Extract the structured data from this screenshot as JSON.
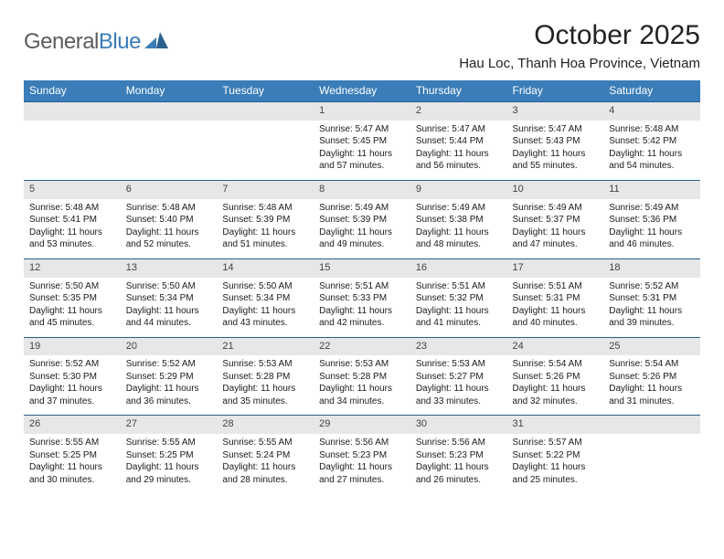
{
  "brand": {
    "word1": "General",
    "word2": "Blue"
  },
  "title": "October 2025",
  "location": "Hau Loc, Thanh Hoa Province, Vietnam",
  "colors": {
    "header_bg": "#3a7db8",
    "header_fg": "#ffffff",
    "daynum_bg": "#e7e7e7",
    "week_border": "#2b5f8e",
    "text": "#1a1a1a",
    "logo_gray": "#5c5c5c",
    "logo_blue": "#3a7db8"
  },
  "daysOfWeek": [
    "Sunday",
    "Monday",
    "Tuesday",
    "Wednesday",
    "Thursday",
    "Friday",
    "Saturday"
  ],
  "firstWeekday": 3,
  "daysInMonth": 31,
  "days": {
    "1": {
      "sunrise": "5:47 AM",
      "sunset": "5:45 PM",
      "daylight": "11 hours and 57 minutes."
    },
    "2": {
      "sunrise": "5:47 AM",
      "sunset": "5:44 PM",
      "daylight": "11 hours and 56 minutes."
    },
    "3": {
      "sunrise": "5:47 AM",
      "sunset": "5:43 PM",
      "daylight": "11 hours and 55 minutes."
    },
    "4": {
      "sunrise": "5:48 AM",
      "sunset": "5:42 PM",
      "daylight": "11 hours and 54 minutes."
    },
    "5": {
      "sunrise": "5:48 AM",
      "sunset": "5:41 PM",
      "daylight": "11 hours and 53 minutes."
    },
    "6": {
      "sunrise": "5:48 AM",
      "sunset": "5:40 PM",
      "daylight": "11 hours and 52 minutes."
    },
    "7": {
      "sunrise": "5:48 AM",
      "sunset": "5:39 PM",
      "daylight": "11 hours and 51 minutes."
    },
    "8": {
      "sunrise": "5:49 AM",
      "sunset": "5:39 PM",
      "daylight": "11 hours and 49 minutes."
    },
    "9": {
      "sunrise": "5:49 AM",
      "sunset": "5:38 PM",
      "daylight": "11 hours and 48 minutes."
    },
    "10": {
      "sunrise": "5:49 AM",
      "sunset": "5:37 PM",
      "daylight": "11 hours and 47 minutes."
    },
    "11": {
      "sunrise": "5:49 AM",
      "sunset": "5:36 PM",
      "daylight": "11 hours and 46 minutes."
    },
    "12": {
      "sunrise": "5:50 AM",
      "sunset": "5:35 PM",
      "daylight": "11 hours and 45 minutes."
    },
    "13": {
      "sunrise": "5:50 AM",
      "sunset": "5:34 PM",
      "daylight": "11 hours and 44 minutes."
    },
    "14": {
      "sunrise": "5:50 AM",
      "sunset": "5:34 PM",
      "daylight": "11 hours and 43 minutes."
    },
    "15": {
      "sunrise": "5:51 AM",
      "sunset": "5:33 PM",
      "daylight": "11 hours and 42 minutes."
    },
    "16": {
      "sunrise": "5:51 AM",
      "sunset": "5:32 PM",
      "daylight": "11 hours and 41 minutes."
    },
    "17": {
      "sunrise": "5:51 AM",
      "sunset": "5:31 PM",
      "daylight": "11 hours and 40 minutes."
    },
    "18": {
      "sunrise": "5:52 AM",
      "sunset": "5:31 PM",
      "daylight": "11 hours and 39 minutes."
    },
    "19": {
      "sunrise": "5:52 AM",
      "sunset": "5:30 PM",
      "daylight": "11 hours and 37 minutes."
    },
    "20": {
      "sunrise": "5:52 AM",
      "sunset": "5:29 PM",
      "daylight": "11 hours and 36 minutes."
    },
    "21": {
      "sunrise": "5:53 AM",
      "sunset": "5:28 PM",
      "daylight": "11 hours and 35 minutes."
    },
    "22": {
      "sunrise": "5:53 AM",
      "sunset": "5:28 PM",
      "daylight": "11 hours and 34 minutes."
    },
    "23": {
      "sunrise": "5:53 AM",
      "sunset": "5:27 PM",
      "daylight": "11 hours and 33 minutes."
    },
    "24": {
      "sunrise": "5:54 AM",
      "sunset": "5:26 PM",
      "daylight": "11 hours and 32 minutes."
    },
    "25": {
      "sunrise": "5:54 AM",
      "sunset": "5:26 PM",
      "daylight": "11 hours and 31 minutes."
    },
    "26": {
      "sunrise": "5:55 AM",
      "sunset": "5:25 PM",
      "daylight": "11 hours and 30 minutes."
    },
    "27": {
      "sunrise": "5:55 AM",
      "sunset": "5:25 PM",
      "daylight": "11 hours and 29 minutes."
    },
    "28": {
      "sunrise": "5:55 AM",
      "sunset": "5:24 PM",
      "daylight": "11 hours and 28 minutes."
    },
    "29": {
      "sunrise": "5:56 AM",
      "sunset": "5:23 PM",
      "daylight": "11 hours and 27 minutes."
    },
    "30": {
      "sunrise": "5:56 AM",
      "sunset": "5:23 PM",
      "daylight": "11 hours and 26 minutes."
    },
    "31": {
      "sunrise": "5:57 AM",
      "sunset": "5:22 PM",
      "daylight": "11 hours and 25 minutes."
    }
  },
  "labels": {
    "sunrise": "Sunrise: ",
    "sunset": "Sunset: ",
    "daylight": "Daylight: "
  }
}
